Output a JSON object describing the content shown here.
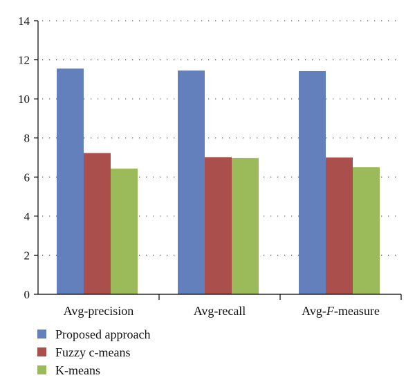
{
  "chart_data": {
    "type": "bar",
    "categories": [
      "Avg-precision",
      "Avg-recall",
      "Avg-F-measure"
    ],
    "category_display": [
      {
        "pre": "Avg-precision",
        "ital": "",
        "post": ""
      },
      {
        "pre": "Avg-recall",
        "ital": "",
        "post": ""
      },
      {
        "pre": "Avg-",
        "ital": "F",
        "post": "-measure"
      }
    ],
    "series": [
      {
        "name": "Proposed approach",
        "color": "#6480bc",
        "values": [
          11.55,
          11.45,
          11.42
        ]
      },
      {
        "name": "Fuzzy c-means",
        "color": "#aa4f4c",
        "values": [
          7.23,
          7.02,
          7.0
        ]
      },
      {
        "name": "K-means",
        "color": "#9bba59",
        "values": [
          6.43,
          6.97,
          6.5
        ]
      }
    ],
    "ylim": [
      0,
      14
    ],
    "yticks": [
      0,
      2,
      4,
      6,
      8,
      10,
      12,
      14
    ],
    "grid": true,
    "legend_position": "bottom-left",
    "title": "",
    "xlabel": "",
    "ylabel": ""
  }
}
